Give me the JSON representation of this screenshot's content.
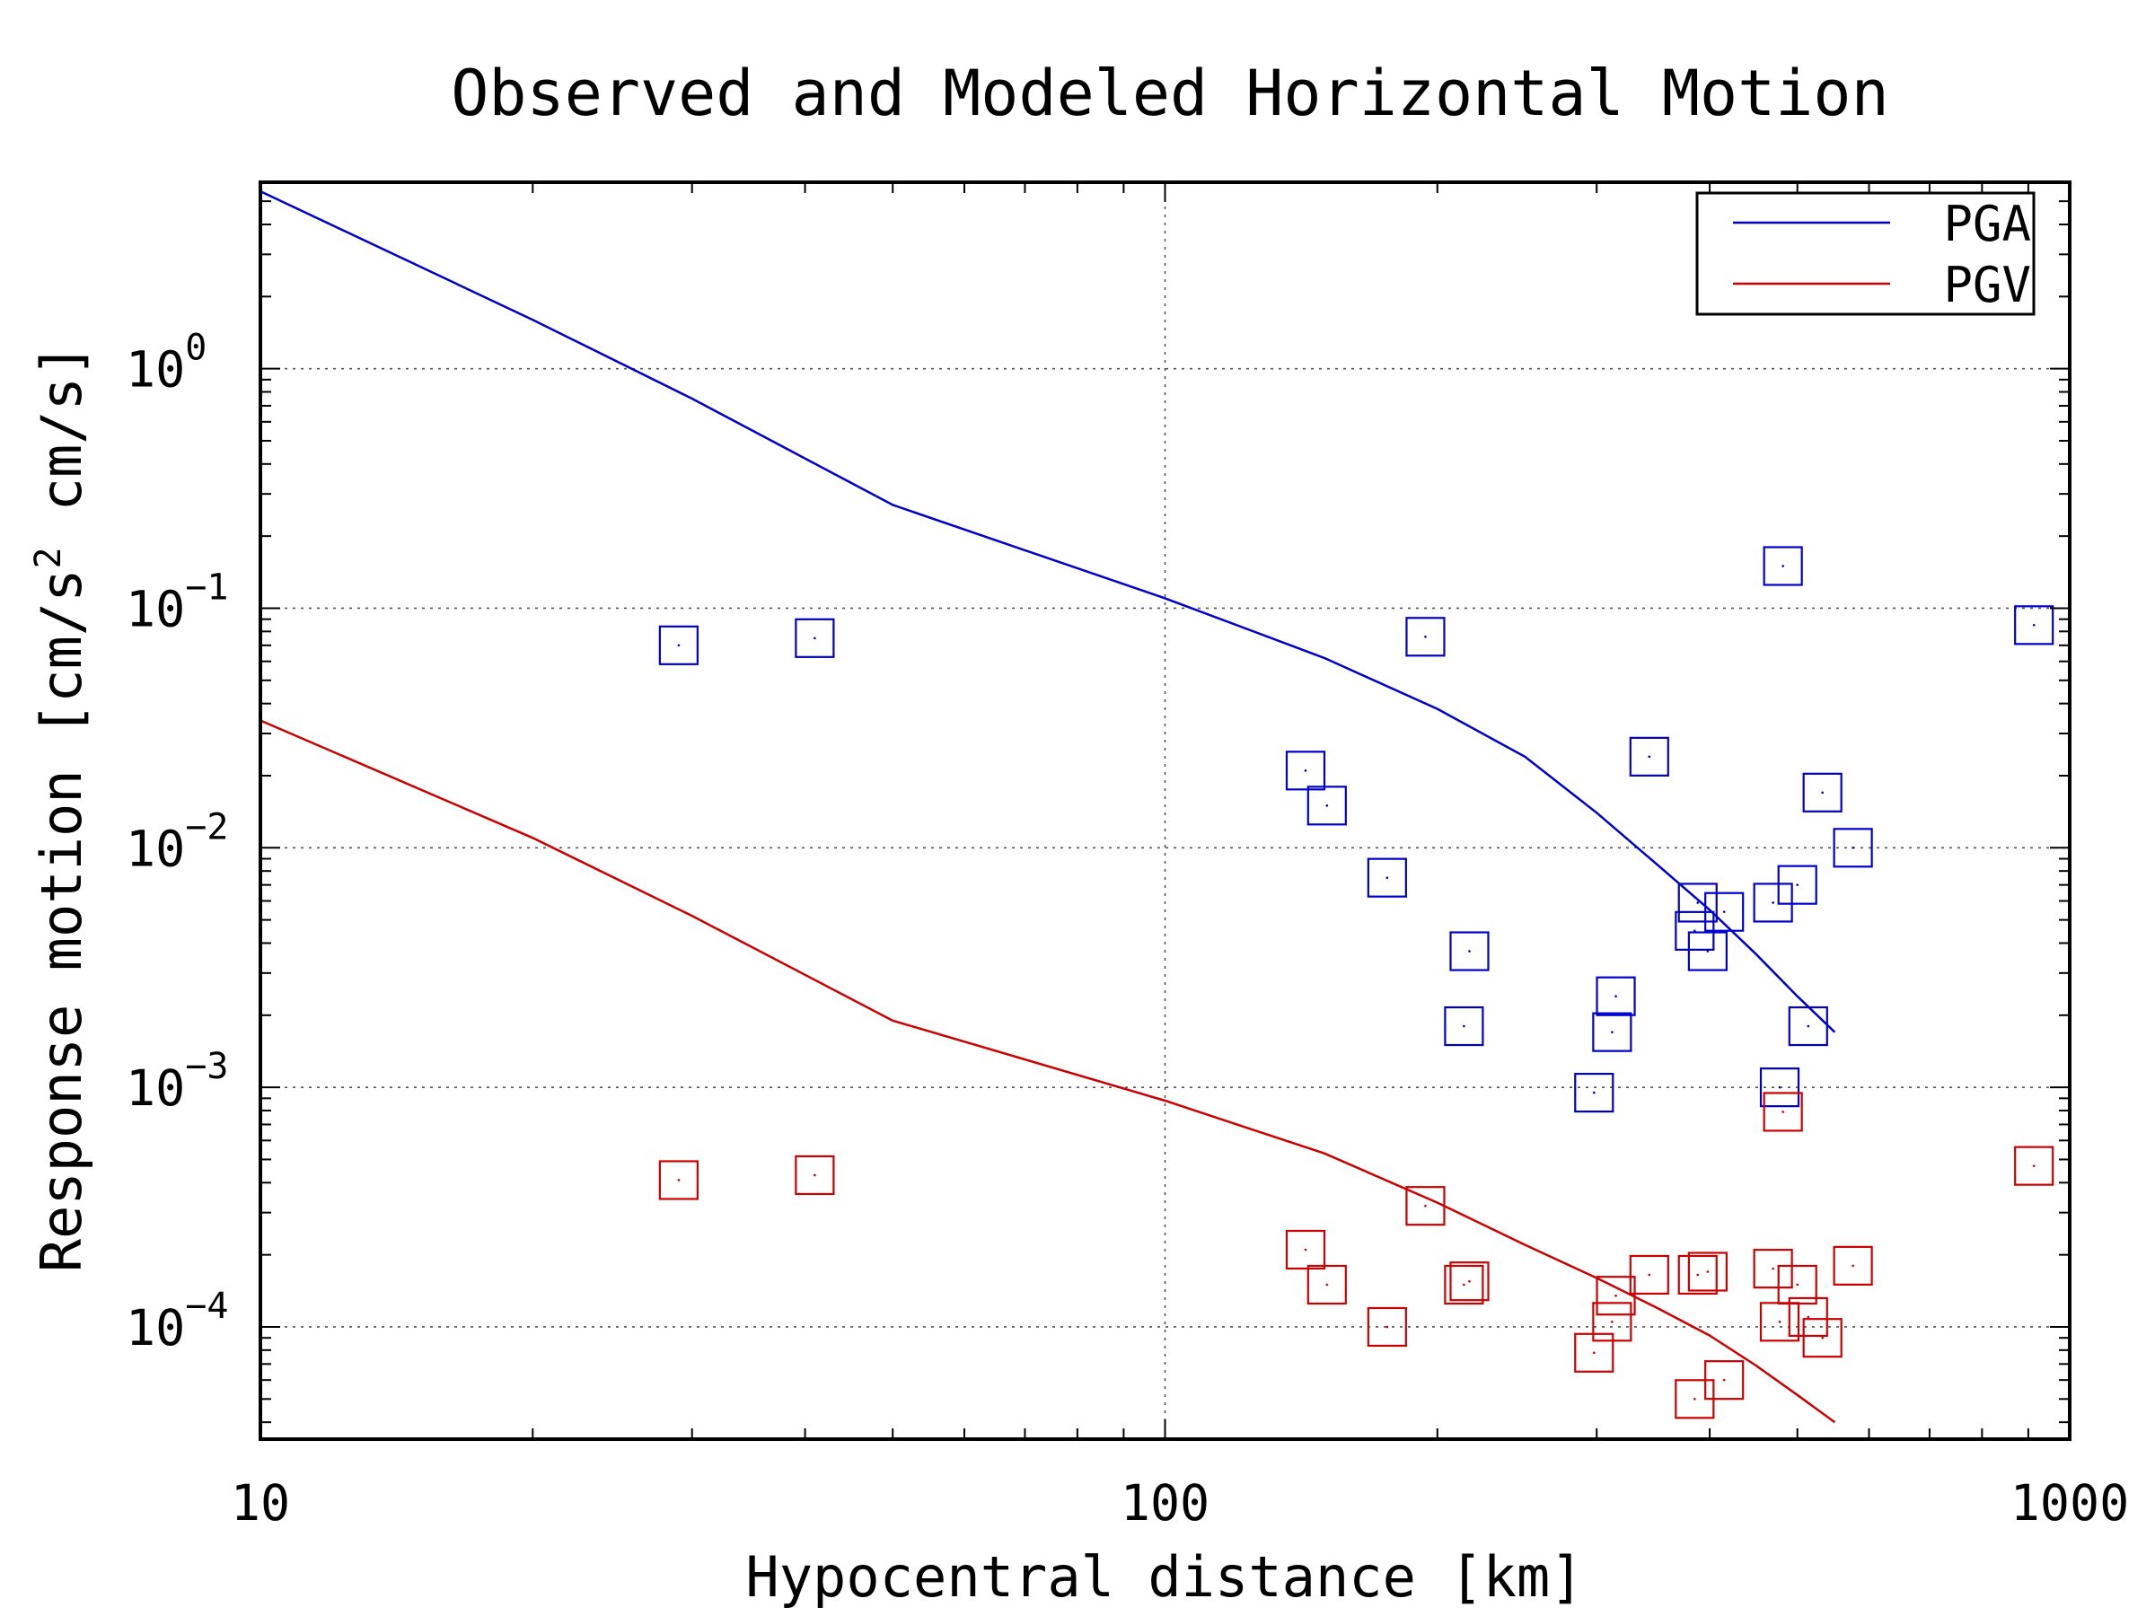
{
  "chart_data": {
    "type": "scatter",
    "title": "Observed and Modeled Horizontal Motion",
    "xlabel": "Hypocentral distance [km]",
    "ylabel": "Response motion [cm/s² cm/s]",
    "ylabel_parts": {
      "main": "Response motion [cm/s",
      "sup": "2",
      "tail": "cm/s]"
    },
    "x_scale": "log",
    "y_scale": "log",
    "xlim": [
      10,
      1000
    ],
    "ylim": [
      3.4e-05,
      6
    ],
    "x_ticks": [
      {
        "value": 10,
        "label": "10"
      },
      {
        "value": 100,
        "label": "100"
      },
      {
        "value": 1000,
        "label": "1000"
      }
    ],
    "y_ticks": [
      {
        "value": 1,
        "base": "10",
        "exp": "0"
      },
      {
        "value": 0.1,
        "base": "10",
        "exp": "−1"
      },
      {
        "value": 0.01,
        "base": "10",
        "exp": "−2"
      },
      {
        "value": 0.001,
        "base": "10",
        "exp": "−3"
      },
      {
        "value": 0.0001,
        "base": "10",
        "exp": "−4"
      }
    ],
    "grid": true,
    "legend_position": "top-right",
    "series": [
      {
        "name": "PGA",
        "color": "#0000cc",
        "line": [
          [
            10,
            5.5
          ],
          [
            20,
            1.6
          ],
          [
            30,
            0.75
          ],
          [
            50,
            0.27
          ],
          [
            100,
            0.11
          ],
          [
            150,
            0.062
          ],
          [
            200,
            0.038
          ],
          [
            250,
            0.024
          ],
          [
            300,
            0.014
          ],
          [
            350,
            0.0085
          ],
          [
            400,
            0.0055
          ],
          [
            450,
            0.0036
          ],
          [
            500,
            0.0024
          ],
          [
            550,
            0.0017
          ]
        ],
        "points": [
          [
            29,
            0.07
          ],
          [
            41,
            0.075
          ],
          [
            143,
            0.021
          ],
          [
            151,
            0.015
          ],
          [
            176,
            0.0075
          ],
          [
            194,
            0.076
          ],
          [
            217,
            0.0037
          ],
          [
            214,
            0.0018
          ],
          [
            298,
            0.00095
          ],
          [
            315,
            0.0024
          ],
          [
            312,
            0.0017
          ],
          [
            343,
            0.024
          ],
          [
            385,
            0.0045
          ],
          [
            388,
            0.0059
          ],
          [
            398,
            0.0037
          ],
          [
            415,
            0.0054
          ],
          [
            470,
            0.0059
          ],
          [
            478,
            0.001
          ],
          [
            482,
            0.15
          ],
          [
            500,
            0.007
          ],
          [
            514,
            0.0018
          ],
          [
            533,
            0.017
          ],
          [
            576,
            0.01
          ],
          [
            913,
            0.085
          ]
        ]
      },
      {
        "name": "PGV",
        "color": "#cc0000",
        "line": [
          [
            10,
            0.034
          ],
          [
            20,
            0.011
          ],
          [
            30,
            0.0052
          ],
          [
            50,
            0.0019
          ],
          [
            100,
            0.00088
          ],
          [
            150,
            0.00053
          ],
          [
            200,
            0.00033
          ],
          [
            250,
            0.00022
          ],
          [
            300,
            0.00016
          ],
          [
            350,
            0.00012
          ],
          [
            400,
            9.2e-05
          ],
          [
            450,
            6.9e-05
          ],
          [
            500,
            5.2e-05
          ],
          [
            550,
            4e-05
          ]
        ],
        "points": [
          [
            29,
            0.00041
          ],
          [
            41,
            0.00043
          ],
          [
            143,
            0.00021
          ],
          [
            151,
            0.00015
          ],
          [
            176,
            0.0001
          ],
          [
            194,
            0.00032
          ],
          [
            217,
            0.000155
          ],
          [
            214,
            0.00015
          ],
          [
            298,
            7.8e-05
          ],
          [
            315,
            0.000135
          ],
          [
            312,
            0.000105
          ],
          [
            343,
            0.000165
          ],
          [
            385,
            5e-05
          ],
          [
            388,
            0.000165
          ],
          [
            398,
            0.00017
          ],
          [
            415,
            6e-05
          ],
          [
            470,
            0.000175
          ],
          [
            478,
            0.000105
          ],
          [
            482,
            0.00079
          ],
          [
            500,
            0.00015
          ],
          [
            514,
            0.00011
          ],
          [
            533,
            9e-05
          ],
          [
            576,
            0.00018
          ],
          [
            913,
            0.00047
          ]
        ]
      }
    ]
  }
}
